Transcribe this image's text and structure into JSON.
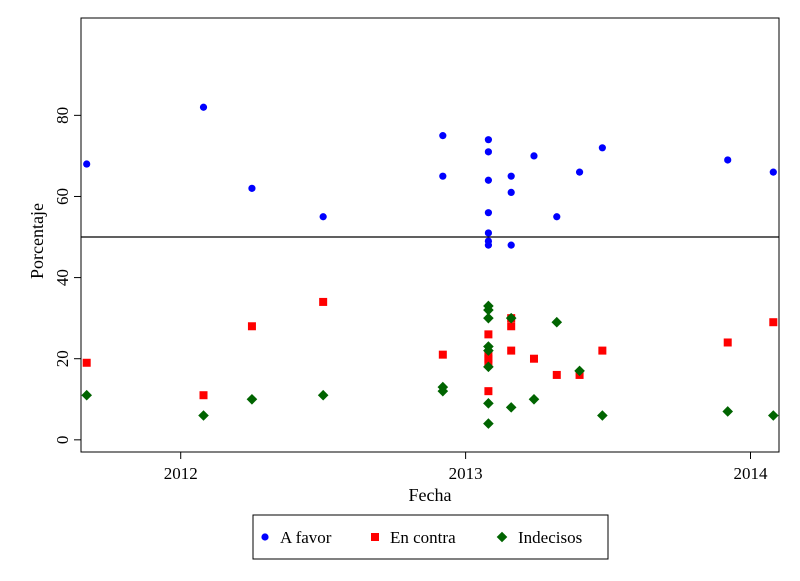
{
  "chart_data": {
    "type": "scatter",
    "title": "",
    "xlabel": "Fecha",
    "ylabel": "Porcentaje",
    "xlim": [
      2011.65,
      2014.1
    ],
    "ylim": [
      -3,
      104
    ],
    "xticks": [
      2012,
      2013,
      2014
    ],
    "xtick_labels": [
      "2012",
      "2013",
      "2014"
    ],
    "yticks": [
      0,
      20,
      40,
      60,
      80
    ],
    "ytick_labels": [
      "0",
      "20",
      "40",
      "60",
      "80"
    ],
    "reference_line": {
      "y": 50
    },
    "grid": false,
    "legend_position": "bottom",
    "series": [
      {
        "name": "A favor",
        "marker": "circle",
        "color": "#0000ff",
        "points": [
          [
            2011.67,
            68
          ],
          [
            2012.08,
            82
          ],
          [
            2012.25,
            62
          ],
          [
            2012.5,
            55
          ],
          [
            2012.92,
            75
          ],
          [
            2012.92,
            65
          ],
          [
            2013.08,
            74
          ],
          [
            2013.08,
            71
          ],
          [
            2013.08,
            64
          ],
          [
            2013.08,
            56
          ],
          [
            2013.08,
            51
          ],
          [
            2013.08,
            49
          ],
          [
            2013.08,
            48
          ],
          [
            2013.16,
            65
          ],
          [
            2013.16,
            61
          ],
          [
            2013.16,
            48
          ],
          [
            2013.24,
            70
          ],
          [
            2013.32,
            55
          ],
          [
            2013.4,
            66
          ],
          [
            2013.48,
            72
          ],
          [
            2013.92,
            69
          ],
          [
            2014.08,
            66
          ]
        ]
      },
      {
        "name": "En contra",
        "marker": "square",
        "color": "#ff0000",
        "points": [
          [
            2011.67,
            19
          ],
          [
            2012.08,
            11
          ],
          [
            2012.25,
            28
          ],
          [
            2012.5,
            34
          ],
          [
            2012.92,
            21
          ],
          [
            2013.08,
            26
          ],
          [
            2013.08,
            21
          ],
          [
            2013.08,
            20
          ],
          [
            2013.08,
            19
          ],
          [
            2013.08,
            12
          ],
          [
            2013.16,
            30
          ],
          [
            2013.16,
            28
          ],
          [
            2013.16,
            22
          ],
          [
            2013.24,
            20
          ],
          [
            2013.32,
            16
          ],
          [
            2013.4,
            16
          ],
          [
            2013.48,
            22
          ],
          [
            2013.92,
            24
          ],
          [
            2014.08,
            29
          ]
        ]
      },
      {
        "name": "Indecisos",
        "marker": "diamond",
        "color": "#006400",
        "points": [
          [
            2011.67,
            11
          ],
          [
            2012.08,
            6
          ],
          [
            2012.25,
            10
          ],
          [
            2012.5,
            11
          ],
          [
            2012.92,
            13
          ],
          [
            2012.92,
            12
          ],
          [
            2013.08,
            33
          ],
          [
            2013.08,
            32
          ],
          [
            2013.08,
            30
          ],
          [
            2013.08,
            23
          ],
          [
            2013.08,
            22
          ],
          [
            2013.08,
            18
          ],
          [
            2013.08,
            9
          ],
          [
            2013.08,
            4
          ],
          [
            2013.16,
            30
          ],
          [
            2013.16,
            8
          ],
          [
            2013.24,
            10
          ],
          [
            2013.32,
            29
          ],
          [
            2013.4,
            17
          ],
          [
            2013.48,
            6
          ],
          [
            2013.92,
            7
          ],
          [
            2014.08,
            6
          ]
        ]
      }
    ]
  }
}
